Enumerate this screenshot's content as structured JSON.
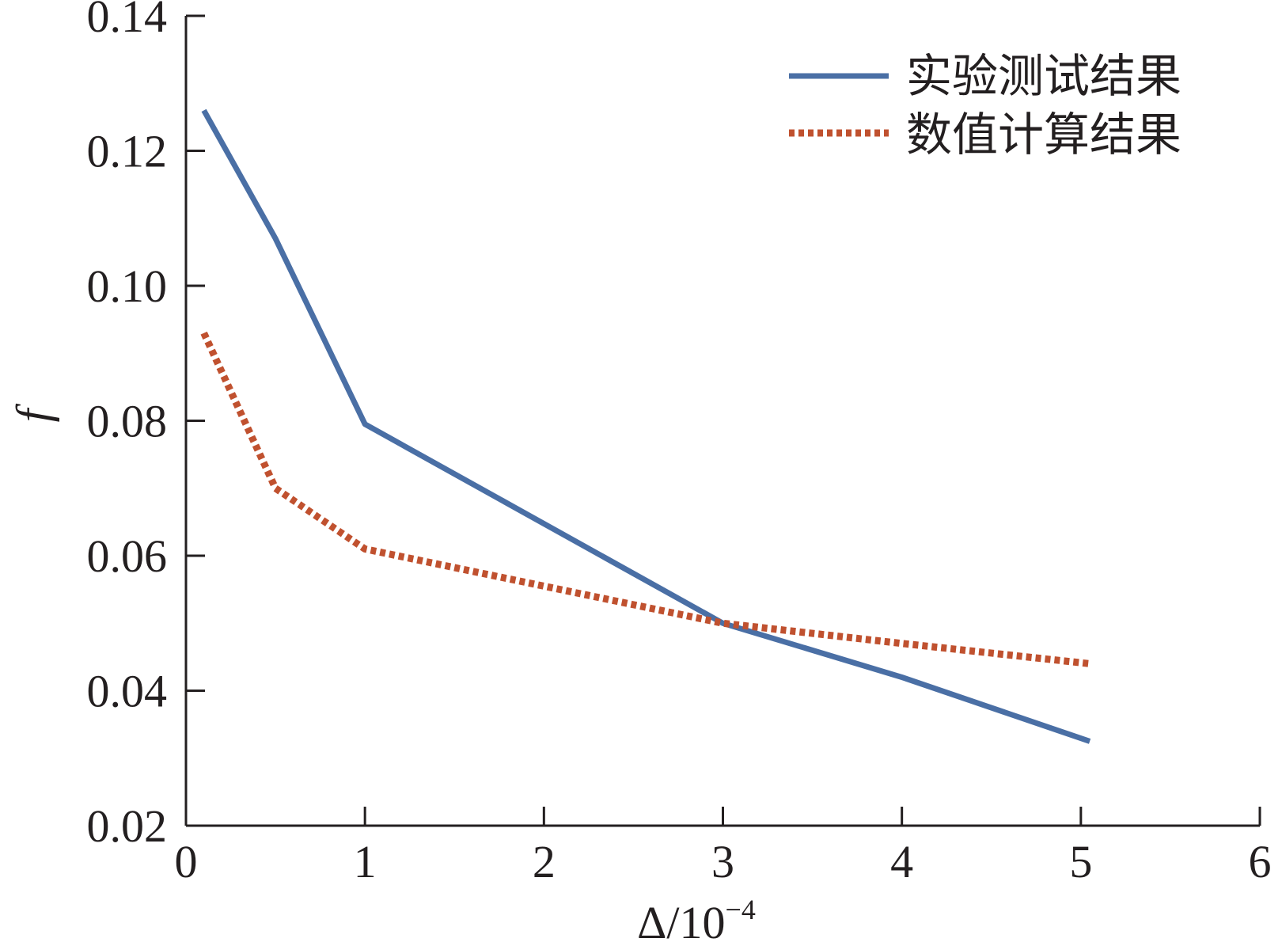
{
  "chart_data": {
    "type": "line",
    "title": "",
    "xlabel": "Δ/10",
    "xlabel_superscript": "−4",
    "ylabel": "f",
    "xlim": [
      0,
      6
    ],
    "ylim": [
      0.02,
      0.14
    ],
    "xticks": [
      0,
      1,
      2,
      3,
      4,
      5,
      6
    ],
    "xtick_labels": [
      "0",
      "1",
      "2",
      "3",
      "4",
      "5",
      "6"
    ],
    "yticks": [
      0.02,
      0.04,
      0.06,
      0.08,
      0.1,
      0.12,
      0.14
    ],
    "ytick_labels": [
      "0.02",
      "0.04",
      "0.06",
      "0.08",
      "0.10",
      "0.12",
      "0.14"
    ],
    "grid": false,
    "legend_position": "top-right",
    "series": [
      {
        "name": "实验测试结果",
        "style": "solid",
        "color": "#4a6fa5",
        "x": [
          0.1,
          0.5,
          1.0,
          3.0,
          4.0,
          5.05
        ],
        "y": [
          0.126,
          0.107,
          0.0795,
          0.05,
          0.042,
          0.0325
        ]
      },
      {
        "name": "数值计算结果",
        "style": "dotted",
        "color": "#c0512f",
        "x": [
          0.1,
          0.5,
          1.0,
          3.0,
          4.0,
          5.05
        ],
        "y": [
          0.093,
          0.07,
          0.061,
          0.05,
          0.047,
          0.044
        ]
      }
    ],
    "axis_color": "#231f20"
  }
}
